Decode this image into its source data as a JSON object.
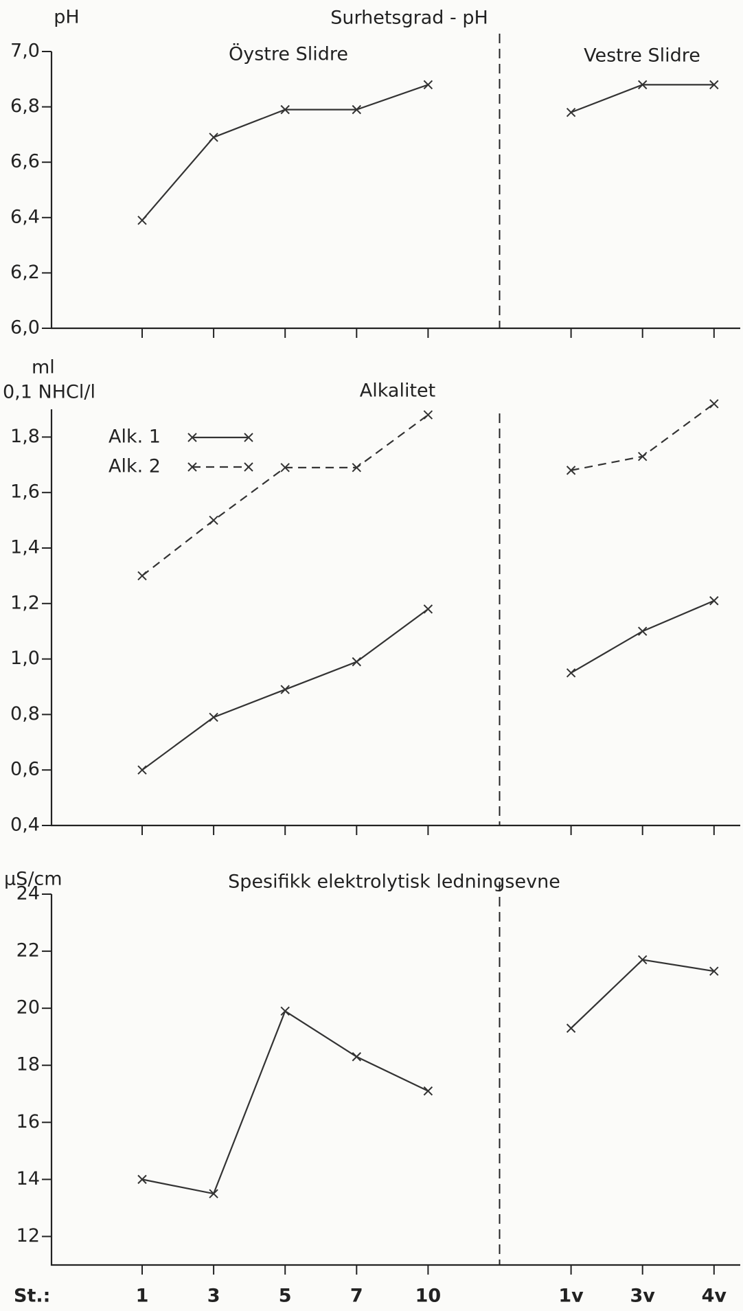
{
  "chart_data": [
    {
      "type": "line",
      "ylabel": "pH",
      "title": "Surhetsgrad - pH",
      "annotations": [
        "Öystre Slidre",
        "Vestre Slidre"
      ],
      "series": [
        {
          "name": "pH",
          "color": "#333333",
          "linestyle": "solid",
          "values": [
            6.39,
            6.69,
            6.79,
            6.79,
            6.88,
            null,
            6.78,
            6.88,
            6.88
          ]
        }
      ],
      "ylim": [
        6.0,
        7.0
      ],
      "yticks": [
        {
          "value": 6.0,
          "label": "6,0"
        },
        {
          "value": 6.2,
          "label": "6,2"
        },
        {
          "value": 6.4,
          "label": "6,4"
        },
        {
          "value": 6.6,
          "label": "6,6"
        },
        {
          "value": 6.8,
          "label": "6,8"
        },
        {
          "value": 7.0,
          "label": "7,0"
        }
      ]
    },
    {
      "type": "line",
      "ylabel": [
        "ml",
        "0,1 NHCl/l"
      ],
      "title": "Alkalitet",
      "series": [
        {
          "name": "Alk. 1",
          "color": "#333333",
          "linestyle": "solid",
          "values": [
            0.6,
            0.79,
            0.89,
            0.99,
            1.18,
            null,
            0.95,
            1.1,
            1.21
          ]
        },
        {
          "name": "Alk. 2",
          "color": "#333333",
          "linestyle": "dashed",
          "values": [
            1.3,
            1.5,
            1.69,
            1.69,
            1.88,
            null,
            1.68,
            1.73,
            1.92
          ]
        }
      ],
      "ylim": [
        0.4,
        1.9
      ],
      "yticks": [
        {
          "value": 0.4,
          "label": "0,4"
        },
        {
          "value": 0.6,
          "label": "0,6"
        },
        {
          "value": 0.8,
          "label": "0,8"
        },
        {
          "value": 1.0,
          "label": "1,0"
        },
        {
          "value": 1.2,
          "label": "1,2"
        },
        {
          "value": 1.4,
          "label": "1,4"
        },
        {
          "value": 1.6,
          "label": "1,6"
        },
        {
          "value": 1.8,
          "label": "1,8"
        }
      ]
    },
    {
      "type": "line",
      "ylabel": "µS/cm",
      "title": "Spesifikk elektrolytisk ledningsevne",
      "xlabel": "St.:",
      "categories": [
        "1",
        "3",
        "5",
        "7",
        "10",
        null,
        "1v",
        "3v",
        "4v"
      ],
      "series": [
        {
          "name": "Ledningsevne",
          "color": "#333333",
          "linestyle": "solid",
          "values": [
            14.0,
            13.5,
            19.9,
            18.3,
            17.1,
            null,
            19.3,
            21.7,
            21.3
          ]
        }
      ],
      "ylim": [
        11,
        24
      ],
      "yticks": [
        12,
        14,
        16,
        18,
        20,
        22,
        24
      ]
    }
  ]
}
